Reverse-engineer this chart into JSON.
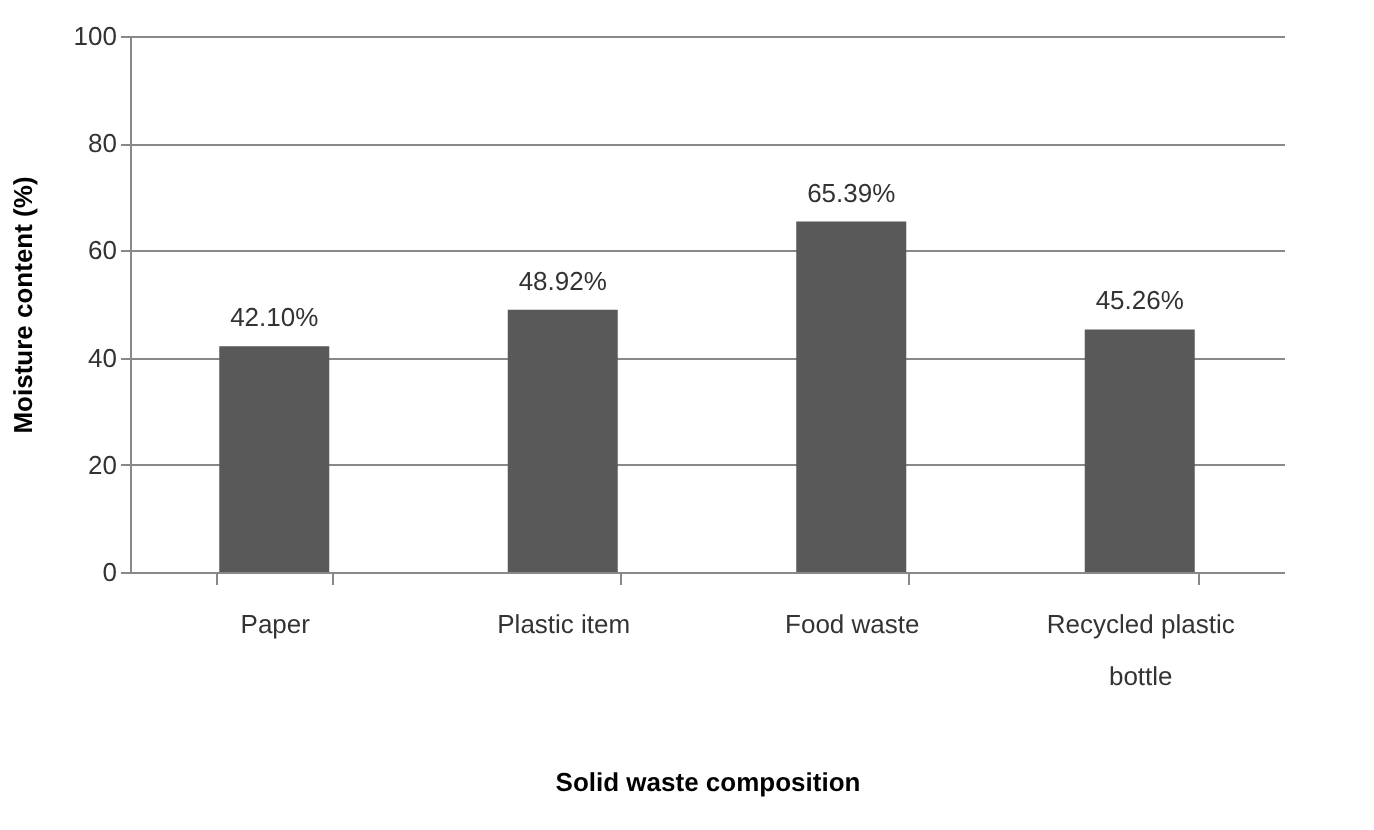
{
  "chart_data": {
    "type": "bar",
    "xlabel": "Solid waste composition",
    "ylabel": "Moisture content (%)",
    "categories": [
      "Paper",
      "Plastic item",
      "Food waste",
      "Recycled plastic bottle"
    ],
    "values": [
      42.1,
      48.92,
      65.39,
      45.26
    ],
    "value_labels": [
      "42.10%",
      "48.92%",
      "65.39%",
      "45.26%"
    ],
    "color": "#595959",
    "ylim": [
      0,
      100
    ],
    "yticks": [
      0,
      20,
      40,
      60,
      80,
      100
    ],
    "grid": "y"
  }
}
